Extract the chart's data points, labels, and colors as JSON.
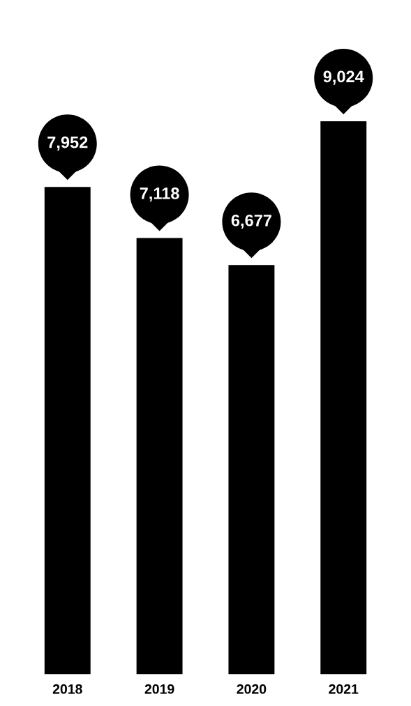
{
  "chart_data": {
    "type": "bar",
    "categories": [
      "2018",
      "2019",
      "2020",
      "2021"
    ],
    "values": [
      7952,
      7118,
      6677,
      9024
    ],
    "value_labels": [
      "7,952",
      "7,118",
      "6,677",
      "9,024"
    ],
    "color": "#000000",
    "grid": false,
    "legend": false
  }
}
